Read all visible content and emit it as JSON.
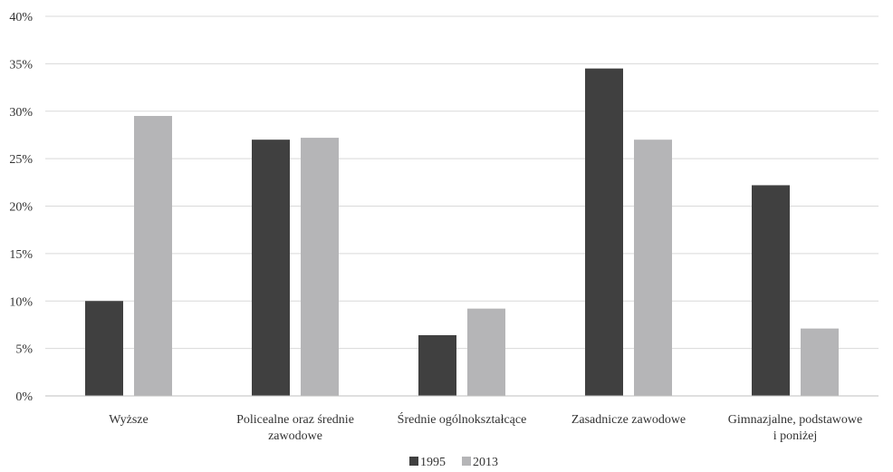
{
  "chart_data": {
    "type": "bar",
    "categories": [
      [
        "Wyższe"
      ],
      [
        "Policealne oraz średnie",
        "zawodowe"
      ],
      [
        "Średnie ogólnokształcące"
      ],
      [
        "Zasadnicze zawodowe"
      ],
      [
        "Gimnazjalne, podstawowe",
        "i poniżej"
      ]
    ],
    "series": [
      {
        "name": "1995",
        "color": "#404040",
        "values": [
          10.0,
          27.0,
          6.4,
          34.5,
          22.2
        ]
      },
      {
        "name": "2013",
        "color": "#b5b5b7",
        "values": [
          29.5,
          27.2,
          9.2,
          27.0,
          7.1
        ]
      }
    ],
    "ylim": [
      0,
      40
    ],
    "yticks": [
      0,
      5,
      10,
      15,
      20,
      25,
      30,
      35,
      40
    ],
    "ytick_labels": [
      "0%",
      "5%",
      "10%",
      "15%",
      "20%",
      "25%",
      "30%",
      "35%",
      "40%"
    ],
    "grid": true,
    "legend_position": "bottom-center",
    "title": "",
    "xlabel": "",
    "ylabel": ""
  }
}
